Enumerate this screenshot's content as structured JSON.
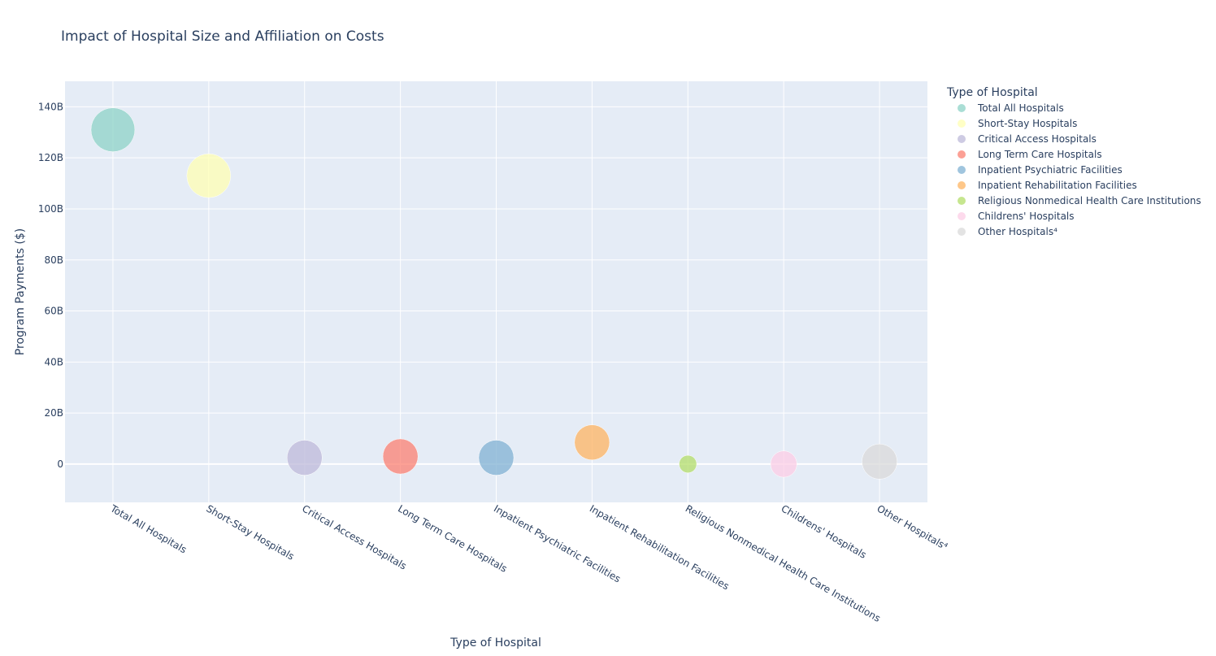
{
  "chart_data": {
    "type": "scatter",
    "title": "Impact of Hospital Size and Affiliation on Costs",
    "xlabel": "Type of Hospital",
    "ylabel": "Program Payments ($)",
    "ylim": [
      -15000000000,
      150000000000
    ],
    "yticks": [
      0,
      20000000000,
      40000000000,
      60000000000,
      80000000000,
      100000000000,
      120000000000,
      140000000000
    ],
    "ytick_labels": [
      "0",
      "20B",
      "40B",
      "60B",
      "80B",
      "100B",
      "120B",
      "140B"
    ],
    "legend_title": "Type of Hospital",
    "legend_position": "right",
    "categories": [
      "Total All Hospitals",
      "Short-Stay Hospitals",
      "Critical Access Hospitals",
      "Long Term Care Hospitals",
      "Inpatient Psychiatric Facilities",
      "Inpatient Rehabilitation Facilities",
      "Religious Nonmedical Health Care Institutions",
      "Childrens' Hospitals",
      "Other Hospitals⁴"
    ],
    "values": [
      131000000000,
      113000000000,
      2500000000,
      3000000000,
      2500000000,
      8500000000,
      0,
      0,
      1000000000
    ],
    "bubble_size_relative": [
      1.0,
      1.0,
      0.8,
      0.8,
      0.8,
      0.8,
      0.4,
      0.6,
      0.8
    ],
    "colors": [
      "#8dd3c7",
      "#ffffb3",
      "#bebada",
      "#fb8072",
      "#80b1d3",
      "#fdb462",
      "#b3de69",
      "#fccde5",
      "#d9d9d9"
    ]
  }
}
